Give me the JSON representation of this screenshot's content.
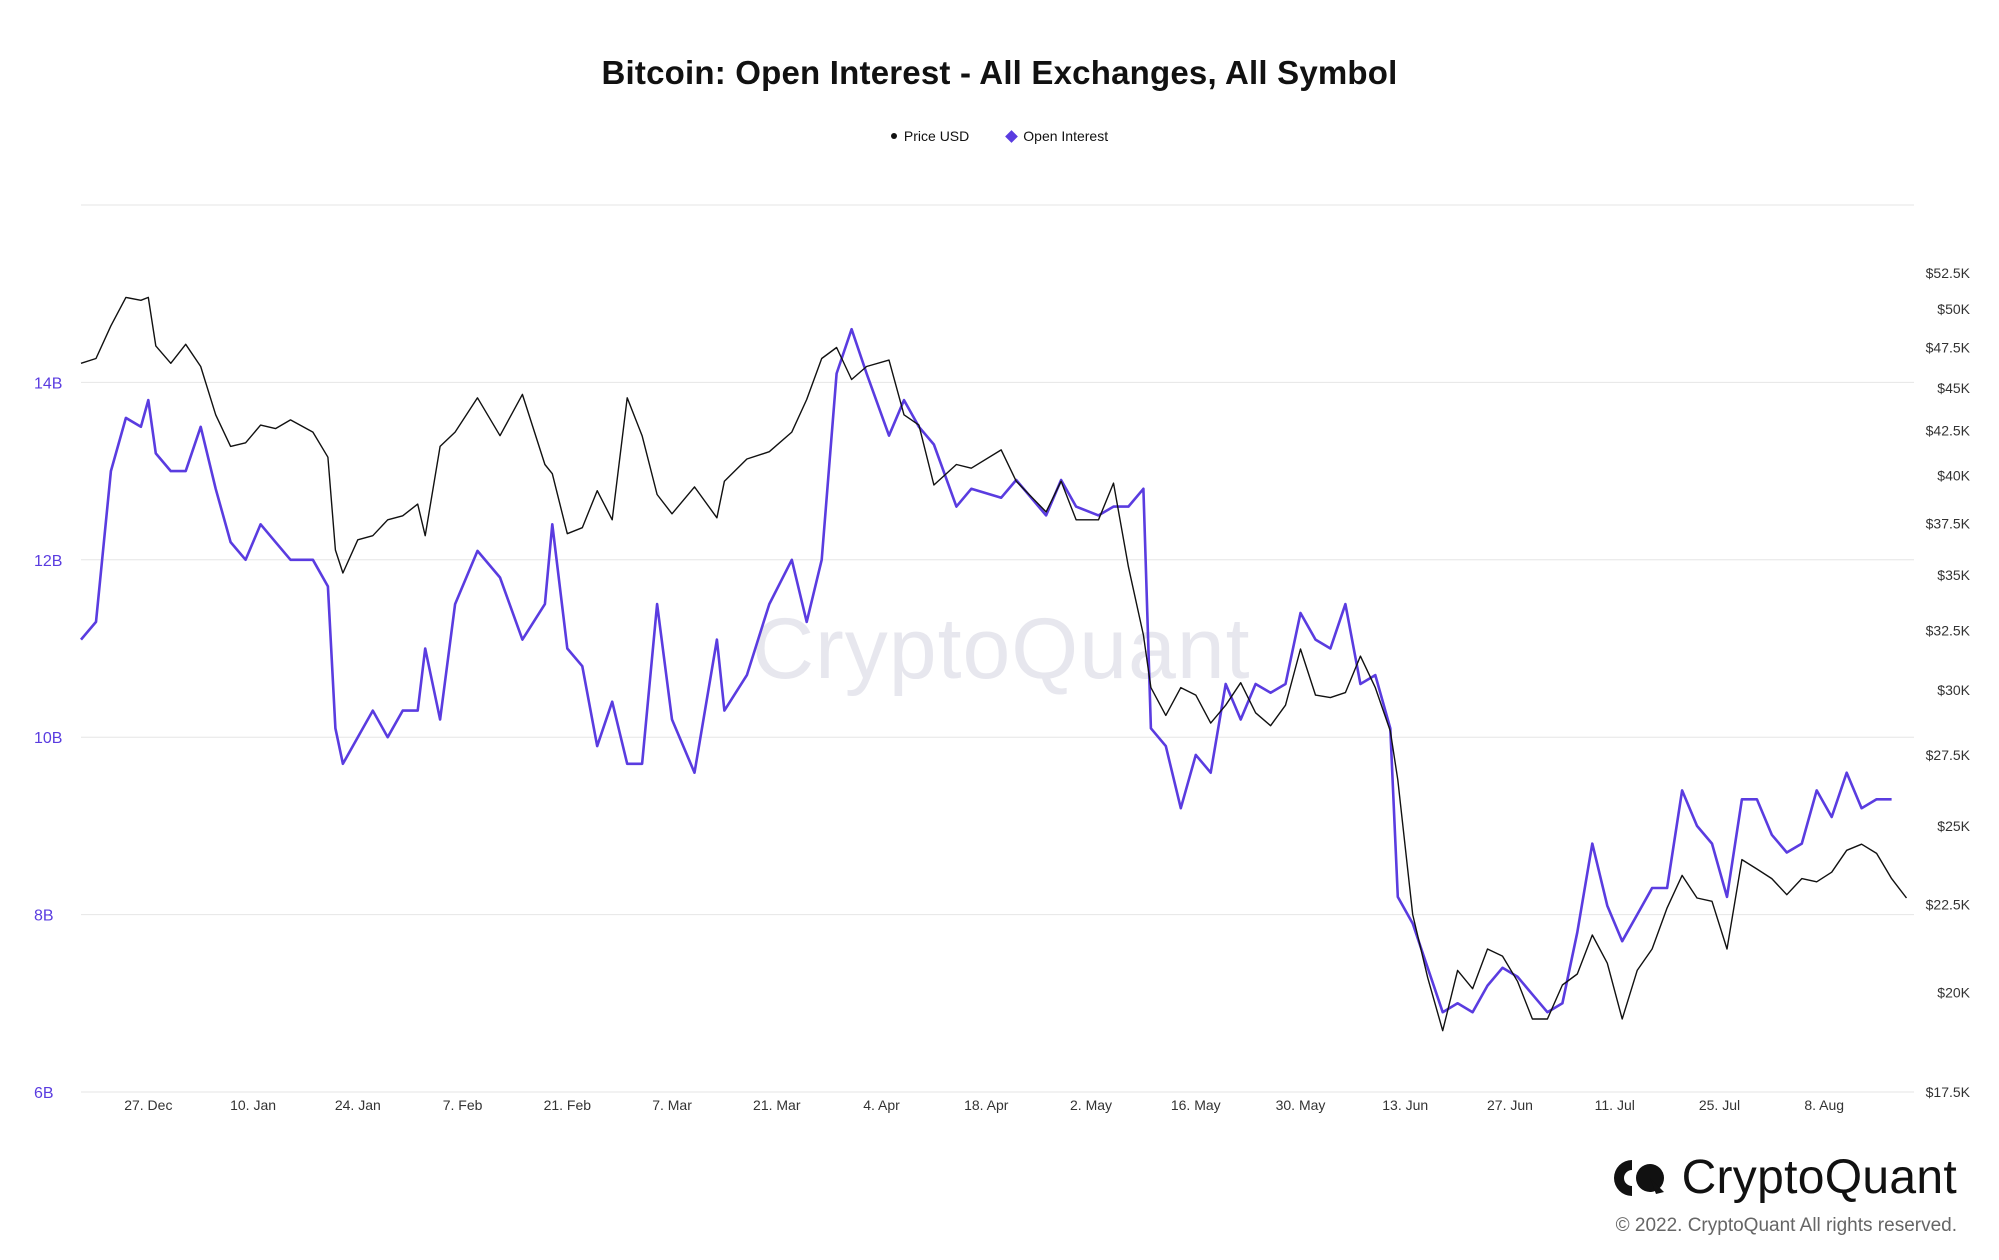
{
  "title": "Bitcoin: Open Interest - All Exchanges, All Symbol",
  "legend": [
    {
      "label": "Price USD",
      "color": "#111111",
      "marker": "dot"
    },
    {
      "label": "Open Interest",
      "color": "#5a3ce0",
      "marker": "diamond"
    }
  ],
  "watermark": "CryptoQuant",
  "brand": {
    "name": "CryptoQuant",
    "copyright": "© 2022. CryptoQuant All rights reserved."
  },
  "chart_data": {
    "type": "line",
    "x_ticks": [
      "27. Dec",
      "10. Jan",
      "24. Jan",
      "7. Feb",
      "21. Feb",
      "7. Mar",
      "21. Mar",
      "4. Apr",
      "18. Apr",
      "2. May",
      "16. May",
      "30. May",
      "13. Jun",
      "27. Jun",
      "11. Jul",
      "25. Jul",
      "8. Aug"
    ],
    "x_start": "2021-12-18",
    "x_end": "2022-08-20",
    "y_left": {
      "ticks": [
        "6B",
        "8B",
        "10B",
        "12B",
        "14B"
      ],
      "min": 6,
      "max": 16,
      "unit": "B",
      "color": "#5a3ce0"
    },
    "y_right": {
      "ticks": [
        "$17.5K",
        "$20K",
        "$22.5K",
        "$25K",
        "$27.5K",
        "$30K",
        "$32.5K",
        "$35K",
        "$37.5K",
        "$40K",
        "$42.5K",
        "$45K",
        "$47.5K",
        "$50K",
        "$52.5K"
      ],
      "values": [
        17.5,
        20,
        22.5,
        25,
        27.5,
        30,
        32.5,
        35,
        37.5,
        40,
        42.5,
        45,
        47.5,
        50,
        52.5
      ],
      "scale": "log",
      "min": 17.5,
      "max": 57.5
    },
    "grid": true,
    "legend_position": "top-center",
    "series": [
      {
        "name": "Open Interest",
        "axis": "left",
        "color": "#5a3ce0",
        "points": [
          [
            "2021-12-18",
            11.1
          ],
          [
            "2021-12-20",
            11.3
          ],
          [
            "2021-12-22",
            13.0
          ],
          [
            "2021-12-24",
            13.6
          ],
          [
            "2021-12-26",
            13.5
          ],
          [
            "2021-12-27",
            13.8
          ],
          [
            "2021-12-28",
            13.2
          ],
          [
            "2021-12-30",
            13.0
          ],
          [
            "2022-01-01",
            13.0
          ],
          [
            "2022-01-03",
            13.5
          ],
          [
            "2022-01-05",
            12.8
          ],
          [
            "2022-01-07",
            12.2
          ],
          [
            "2022-01-09",
            12.0
          ],
          [
            "2022-01-11",
            12.4
          ],
          [
            "2022-01-13",
            12.2
          ],
          [
            "2022-01-15",
            12.0
          ],
          [
            "2022-01-18",
            12.0
          ],
          [
            "2022-01-20",
            11.7
          ],
          [
            "2022-01-21",
            10.1
          ],
          [
            "2022-01-22",
            9.7
          ],
          [
            "2022-01-24",
            10.0
          ],
          [
            "2022-01-26",
            10.3
          ],
          [
            "2022-01-28",
            10.0
          ],
          [
            "2022-01-30",
            10.3
          ],
          [
            "2022-02-01",
            10.3
          ],
          [
            "2022-02-02",
            11.0
          ],
          [
            "2022-02-04",
            10.2
          ],
          [
            "2022-02-06",
            11.5
          ],
          [
            "2022-02-09",
            12.1
          ],
          [
            "2022-02-12",
            11.8
          ],
          [
            "2022-02-15",
            11.1
          ],
          [
            "2022-02-18",
            11.5
          ],
          [
            "2022-02-19",
            12.4
          ],
          [
            "2022-02-21",
            11.0
          ],
          [
            "2022-02-23",
            10.8
          ],
          [
            "2022-02-25",
            9.9
          ],
          [
            "2022-02-27",
            10.4
          ],
          [
            "2022-03-01",
            9.7
          ],
          [
            "2022-03-03",
            9.7
          ],
          [
            "2022-03-05",
            11.5
          ],
          [
            "2022-03-07",
            10.2
          ],
          [
            "2022-03-10",
            9.6
          ],
          [
            "2022-03-13",
            11.1
          ],
          [
            "2022-03-14",
            10.3
          ],
          [
            "2022-03-17",
            10.7
          ],
          [
            "2022-03-20",
            11.5
          ],
          [
            "2022-03-23",
            12.0
          ],
          [
            "2022-03-25",
            11.3
          ],
          [
            "2022-03-27",
            12.0
          ],
          [
            "2022-03-29",
            14.1
          ],
          [
            "2022-03-31",
            14.6
          ],
          [
            "2022-04-02",
            14.1
          ],
          [
            "2022-04-05",
            13.4
          ],
          [
            "2022-04-07",
            13.8
          ],
          [
            "2022-04-09",
            13.5
          ],
          [
            "2022-04-11",
            13.3
          ],
          [
            "2022-04-14",
            12.6
          ],
          [
            "2022-04-16",
            12.8
          ],
          [
            "2022-04-20",
            12.7
          ],
          [
            "2022-04-22",
            12.9
          ],
          [
            "2022-04-26",
            12.5
          ],
          [
            "2022-04-28",
            12.9
          ],
          [
            "2022-04-30",
            12.6
          ],
          [
            "2022-05-03",
            12.5
          ],
          [
            "2022-05-05",
            12.6
          ],
          [
            "2022-05-07",
            12.6
          ],
          [
            "2022-05-09",
            12.8
          ],
          [
            "2022-05-10",
            10.1
          ],
          [
            "2022-05-12",
            9.9
          ],
          [
            "2022-05-14",
            9.2
          ],
          [
            "2022-05-16",
            9.8
          ],
          [
            "2022-05-18",
            9.6
          ],
          [
            "2022-05-20",
            10.6
          ],
          [
            "2022-05-22",
            10.2
          ],
          [
            "2022-05-24",
            10.6
          ],
          [
            "2022-05-26",
            10.5
          ],
          [
            "2022-05-28",
            10.6
          ],
          [
            "2022-05-30",
            11.4
          ],
          [
            "2022-06-01",
            11.1
          ],
          [
            "2022-06-03",
            11.0
          ],
          [
            "2022-06-05",
            11.5
          ],
          [
            "2022-06-07",
            10.6
          ],
          [
            "2022-06-09",
            10.7
          ],
          [
            "2022-06-11",
            10.1
          ],
          [
            "2022-06-12",
            8.2
          ],
          [
            "2022-06-14",
            7.9
          ],
          [
            "2022-06-16",
            7.4
          ],
          [
            "2022-06-18",
            6.9
          ],
          [
            "2022-06-20",
            7.0
          ],
          [
            "2022-06-22",
            6.9
          ],
          [
            "2022-06-24",
            7.2
          ],
          [
            "2022-06-26",
            7.4
          ],
          [
            "2022-06-28",
            7.3
          ],
          [
            "2022-06-30",
            7.1
          ],
          [
            "2022-07-02",
            6.9
          ],
          [
            "2022-07-04",
            7.0
          ],
          [
            "2022-07-06",
            7.8
          ],
          [
            "2022-07-08",
            8.8
          ],
          [
            "2022-07-10",
            8.1
          ],
          [
            "2022-07-12",
            7.7
          ],
          [
            "2022-07-14",
            8.0
          ],
          [
            "2022-07-16",
            8.3
          ],
          [
            "2022-07-18",
            8.3
          ],
          [
            "2022-07-20",
            9.4
          ],
          [
            "2022-07-22",
            9.0
          ],
          [
            "2022-07-24",
            8.8
          ],
          [
            "2022-07-26",
            8.2
          ],
          [
            "2022-07-28",
            9.3
          ],
          [
            "2022-07-30",
            9.3
          ],
          [
            "2022-08-01",
            8.9
          ],
          [
            "2022-08-03",
            8.7
          ],
          [
            "2022-08-05",
            8.8
          ],
          [
            "2022-08-07",
            9.4
          ],
          [
            "2022-08-09",
            9.1
          ],
          [
            "2022-08-11",
            9.6
          ],
          [
            "2022-08-13",
            9.2
          ],
          [
            "2022-08-15",
            9.3
          ],
          [
            "2022-08-17",
            9.3
          ]
        ]
      },
      {
        "name": "Price USD",
        "axis": "right",
        "color": "#111111",
        "points": [
          [
            "2021-12-18",
            46.5
          ],
          [
            "2021-12-20",
            46.8
          ],
          [
            "2021-12-22",
            48.9
          ],
          [
            "2021-12-24",
            50.8
          ],
          [
            "2021-12-26",
            50.6
          ],
          [
            "2021-12-27",
            50.8
          ],
          [
            "2021-12-28",
            47.6
          ],
          [
            "2021-12-30",
            46.5
          ],
          [
            "2022-01-01",
            47.7
          ],
          [
            "2022-01-03",
            46.3
          ],
          [
            "2022-01-05",
            43.4
          ],
          [
            "2022-01-07",
            41.6
          ],
          [
            "2022-01-09",
            41.8
          ],
          [
            "2022-01-11",
            42.8
          ],
          [
            "2022-01-13",
            42.6
          ],
          [
            "2022-01-15",
            43.1
          ],
          [
            "2022-01-18",
            42.4
          ],
          [
            "2022-01-20",
            41.0
          ],
          [
            "2022-01-21",
            36.2
          ],
          [
            "2022-01-22",
            35.1
          ],
          [
            "2022-01-24",
            36.7
          ],
          [
            "2022-01-26",
            36.9
          ],
          [
            "2022-01-28",
            37.7
          ],
          [
            "2022-01-30",
            37.9
          ],
          [
            "2022-02-01",
            38.5
          ],
          [
            "2022-02-02",
            36.9
          ],
          [
            "2022-02-04",
            41.6
          ],
          [
            "2022-02-06",
            42.4
          ],
          [
            "2022-02-09",
            44.4
          ],
          [
            "2022-02-12",
            42.2
          ],
          [
            "2022-02-15",
            44.6
          ],
          [
            "2022-02-18",
            40.6
          ],
          [
            "2022-02-19",
            40.1
          ],
          [
            "2022-02-21",
            37.0
          ],
          [
            "2022-02-23",
            37.3
          ],
          [
            "2022-02-25",
            39.2
          ],
          [
            "2022-02-27",
            37.7
          ],
          [
            "2022-03-01",
            44.4
          ],
          [
            "2022-03-03",
            42.2
          ],
          [
            "2022-03-05",
            39.0
          ],
          [
            "2022-03-07",
            38.0
          ],
          [
            "2022-03-10",
            39.4
          ],
          [
            "2022-03-13",
            37.8
          ],
          [
            "2022-03-14",
            39.7
          ],
          [
            "2022-03-17",
            40.9
          ],
          [
            "2022-03-20",
            41.3
          ],
          [
            "2022-03-23",
            42.4
          ],
          [
            "2022-03-25",
            44.3
          ],
          [
            "2022-03-27",
            46.8
          ],
          [
            "2022-03-29",
            47.5
          ],
          [
            "2022-03-31",
            45.5
          ],
          [
            "2022-04-02",
            46.3
          ],
          [
            "2022-04-05",
            46.7
          ],
          [
            "2022-04-07",
            43.4
          ],
          [
            "2022-04-09",
            42.8
          ],
          [
            "2022-04-11",
            39.5
          ],
          [
            "2022-04-14",
            40.6
          ],
          [
            "2022-04-16",
            40.4
          ],
          [
            "2022-04-20",
            41.4
          ],
          [
            "2022-04-22",
            39.7
          ],
          [
            "2022-04-26",
            38.1
          ],
          [
            "2022-04-28",
            39.7
          ],
          [
            "2022-04-30",
            37.7
          ],
          [
            "2022-05-03",
            37.7
          ],
          [
            "2022-05-05",
            39.6
          ],
          [
            "2022-05-07",
            35.4
          ],
          [
            "2022-05-09",
            32.3
          ],
          [
            "2022-05-10",
            30.1
          ],
          [
            "2022-05-12",
            29.0
          ],
          [
            "2022-05-14",
            30.1
          ],
          [
            "2022-05-16",
            29.8
          ],
          [
            "2022-05-18",
            28.7
          ],
          [
            "2022-05-20",
            29.4
          ],
          [
            "2022-05-22",
            30.3
          ],
          [
            "2022-05-24",
            29.1
          ],
          [
            "2022-05-26",
            28.6
          ],
          [
            "2022-05-28",
            29.4
          ],
          [
            "2022-05-30",
            31.7
          ],
          [
            "2022-06-01",
            29.8
          ],
          [
            "2022-06-03",
            29.7
          ],
          [
            "2022-06-05",
            29.9
          ],
          [
            "2022-06-07",
            31.4
          ],
          [
            "2022-06-09",
            30.1
          ],
          [
            "2022-06-11",
            28.4
          ],
          [
            "2022-06-12",
            26.6
          ],
          [
            "2022-06-14",
            22.2
          ],
          [
            "2022-06-16",
            20.4
          ],
          [
            "2022-06-18",
            19.0
          ],
          [
            "2022-06-20",
            20.6
          ],
          [
            "2022-06-22",
            20.1
          ],
          [
            "2022-06-24",
            21.2
          ],
          [
            "2022-06-26",
            21.0
          ],
          [
            "2022-06-28",
            20.3
          ],
          [
            "2022-06-30",
            19.3
          ],
          [
            "2022-07-02",
            19.3
          ],
          [
            "2022-07-04",
            20.2
          ],
          [
            "2022-07-06",
            20.5
          ],
          [
            "2022-07-08",
            21.6
          ],
          [
            "2022-07-10",
            20.8
          ],
          [
            "2022-07-12",
            19.3
          ],
          [
            "2022-07-14",
            20.6
          ],
          [
            "2022-07-16",
            21.2
          ],
          [
            "2022-07-18",
            22.4
          ],
          [
            "2022-07-20",
            23.4
          ],
          [
            "2022-07-22",
            22.7
          ],
          [
            "2022-07-24",
            22.6
          ],
          [
            "2022-07-26",
            21.2
          ],
          [
            "2022-07-28",
            23.9
          ],
          [
            "2022-07-30",
            23.6
          ],
          [
            "2022-08-01",
            23.3
          ],
          [
            "2022-08-03",
            22.8
          ],
          [
            "2022-08-05",
            23.3
          ],
          [
            "2022-08-07",
            23.2
          ],
          [
            "2022-08-09",
            23.5
          ],
          [
            "2022-08-11",
            24.2
          ],
          [
            "2022-08-13",
            24.4
          ],
          [
            "2022-08-15",
            24.1
          ],
          [
            "2022-08-17",
            23.3
          ],
          [
            "2022-08-19",
            22.7
          ]
        ]
      }
    ]
  }
}
